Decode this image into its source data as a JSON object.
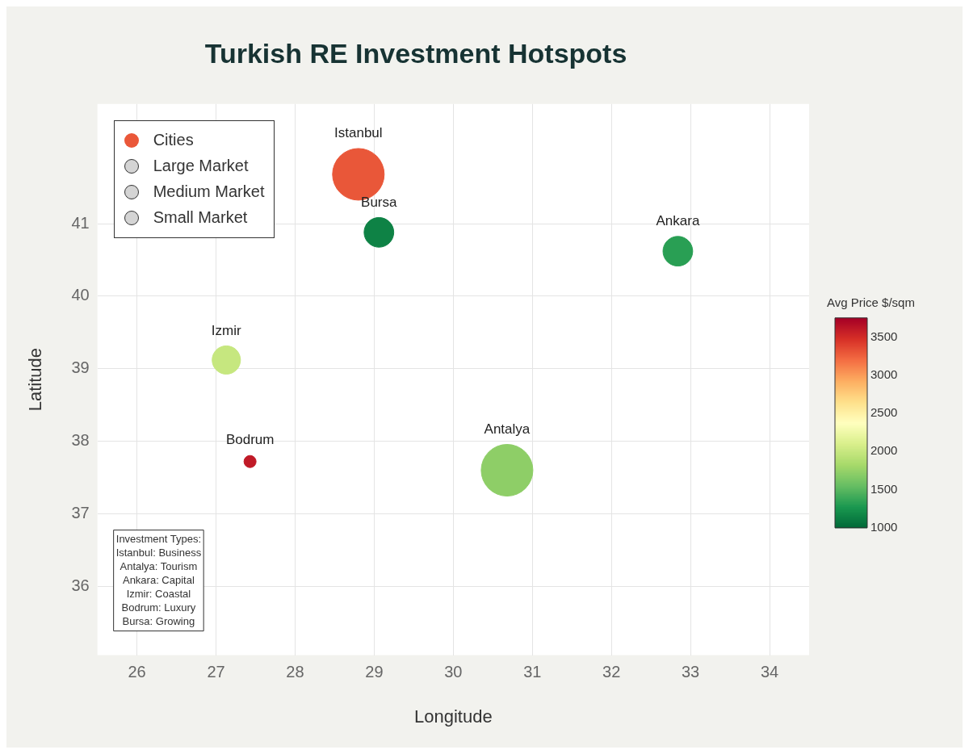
{
  "chart_data": {
    "type": "bubble",
    "title": "Turkish RE Investment Hotspots",
    "xlabel": "Longitude",
    "ylabel": "Latitude",
    "clabel": "Avg Price $/sqm",
    "series": [
      {
        "name": "Cities",
        "x": [
          28.8,
          29.06,
          32.84,
          27.13,
          27.43,
          30.68
        ],
        "values": [
          41.68,
          40.88,
          40.62,
          39.12,
          37.72,
          37.6
        ],
        "sizes": [
          1,
          0.33,
          0.33,
          0.3,
          0.055,
          1
        ],
        "cvalues": [
          3300,
          1150,
          1330,
          2000,
          3600,
          1720
        ],
        "colors": [
          "#ea5739",
          "#0e8245",
          "#299f54",
          "#c6e77f",
          "#c11a27",
          "#8ece67"
        ]
      },
      {
        "name": "Large Market",
        "color": "#d4d4d4"
      },
      {
        "name": "Medium Market",
        "color": "#d4d4d4"
      },
      {
        "name": "Small Market",
        "color": "#d4d4d4"
      }
    ],
    "xlim": [
      25.5,
      34.5
    ],
    "xticks": [
      26,
      27,
      28,
      29,
      30,
      31,
      32,
      33,
      34
    ],
    "ylim": [
      35.05,
      42.65
    ],
    "yticks": [
      36,
      37,
      38,
      39,
      40,
      41
    ],
    "clim": [
      1000,
      3750
    ],
    "cticks": [
      1000,
      1500,
      2000,
      2500,
      3000,
      3500
    ],
    "grid": true,
    "legend": "top left",
    "annotations": [
      {
        "text": "Istanbul",
        "x": 28.8,
        "y": 41.68
      },
      {
        "text": "Bursa",
        "x": 29.06,
        "y": 40.88
      },
      {
        "text": "Ankara",
        "x": 32.84,
        "y": 40.62
      },
      {
        "text": "Izmir",
        "x": 27.13,
        "y": 39.12
      },
      {
        "text": "Bodrum",
        "x": 27.43,
        "y": 37.72
      },
      {
        "text": "Antalya",
        "x": 30.68,
        "y": 37.6
      },
      "Investment Types:",
      "Istanbul: Business",
      "Antalya: Tourism",
      "Ankara: Capital",
      "Izmir: Coastal",
      "Bodrum: Luxury",
      "Bursa: Growing"
    ]
  }
}
